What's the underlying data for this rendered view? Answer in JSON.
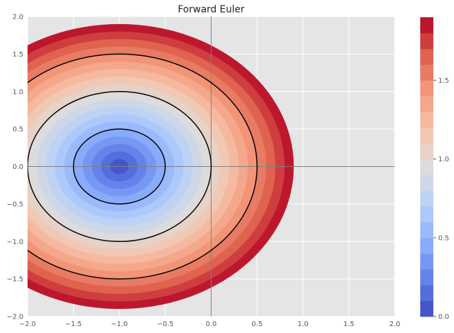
{
  "chart_data": {
    "type": "contour",
    "title": "Forward Euler",
    "xlabel": "",
    "ylabel": "",
    "xlim": [
      -2.0,
      2.0
    ],
    "ylim": [
      -2.0,
      2.0
    ],
    "x_ticks": [
      "−2.0",
      "−1.5",
      "−1.0",
      "−0.5",
      "0.0",
      "0.5",
      "1.0",
      "1.5",
      "2.0"
    ],
    "y_ticks": [
      "−2.0",
      "−1.5",
      "−1.0",
      "−0.5",
      "0.0",
      "0.5",
      "1.0",
      "1.5",
      "2.0"
    ],
    "grid": true,
    "colormap": "coolwarm",
    "filled_contour": {
      "center": [
        -1.0,
        0.0
      ],
      "function": "|z + 1|",
      "levels_min": 0.0,
      "levels_max": 1.9,
      "level_step": 0.1
    },
    "contour_lines": {
      "center": [
        -1.0,
        0.0
      ],
      "levels": [
        0.5,
        1.0,
        1.5
      ],
      "color": "#000000"
    },
    "axis_lines": {
      "x": 0.0,
      "y": 0.0,
      "color": "#808080"
    },
    "colorbar": {
      "ticks": [
        0.0,
        0.5,
        1.0,
        1.5
      ],
      "tick_labels": [
        "0.0",
        "0.5",
        "1.0",
        "1.5"
      ],
      "range": [
        0.0,
        1.9
      ]
    }
  }
}
